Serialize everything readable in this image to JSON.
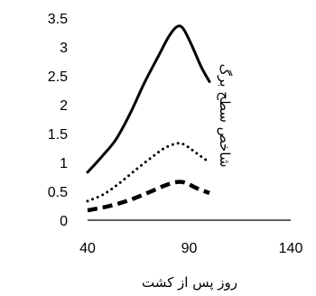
{
  "chart_data": {
    "type": "line",
    "xlabel": "روز پس از کشت",
    "ylabel": "شاخص سطح برگ",
    "xlim": [
      40,
      140
    ],
    "ylim": [
      0,
      3.5
    ],
    "x_ticks": [
      "40",
      "90",
      "140"
    ],
    "y_ticks": [
      "0",
      "0.5",
      "1",
      "1.5",
      "2",
      "2.5",
      "3",
      "3.5"
    ],
    "grid": false,
    "legend": "none",
    "series": [
      {
        "style": "solid",
        "x": [
          40,
          47,
          54,
          61,
          68,
          75,
          80,
          84,
          87,
          91,
          96,
          100
        ],
        "y": [
          0.83,
          1.1,
          1.4,
          1.85,
          2.38,
          2.85,
          3.18,
          3.35,
          3.32,
          3.05,
          2.65,
          2.4
        ]
      },
      {
        "style": "dotted",
        "x": [
          40,
          48,
          56,
          64,
          72,
          78,
          84,
          88,
          94,
          100
        ],
        "y": [
          0.33,
          0.45,
          0.65,
          0.88,
          1.1,
          1.25,
          1.33,
          1.3,
          1.15,
          1.0
        ]
      },
      {
        "style": "dashed",
        "x": [
          40,
          50,
          60,
          70,
          78,
          84,
          88,
          94,
          100
        ],
        "y": [
          0.17,
          0.24,
          0.34,
          0.48,
          0.6,
          0.66,
          0.65,
          0.55,
          0.47
        ]
      }
    ]
  }
}
